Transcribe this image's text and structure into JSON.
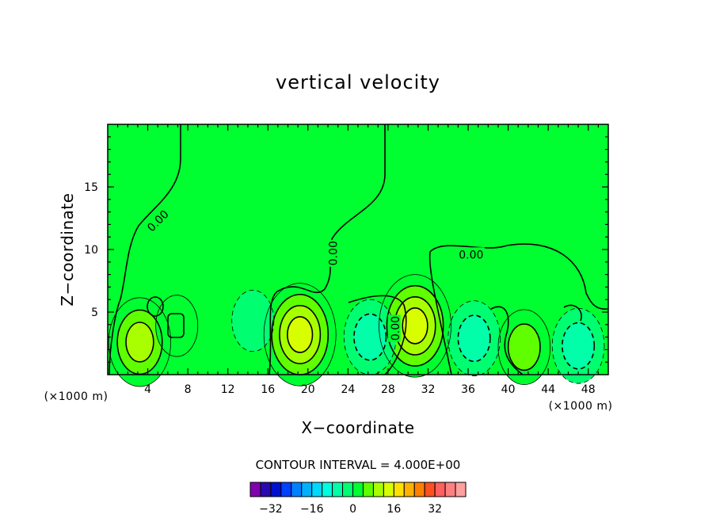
{
  "chart_data": {
    "type": "contour",
    "title": "vertical velocity",
    "xlabel": "X−coordinate",
    "ylabel": "Z−coordinate",
    "x_unit_left": "(×1000 m)",
    "x_unit_right": "(×1000 m)",
    "xlim": [
      0,
      50
    ],
    "ylim": [
      0,
      20
    ],
    "xticks": [
      4,
      8,
      12,
      16,
      20,
      24,
      28,
      32,
      36,
      40,
      44,
      48
    ],
    "yticks": [
      5,
      10,
      15
    ],
    "background_value": 0,
    "contour_interval_text": "CONTOUR INTERVAL = 4.000E+00",
    "contour_labels": [
      {
        "text": "0.00",
        "x": 5.0,
        "y": 12.3,
        "rotate": -45
      },
      {
        "text": "0.00",
        "x": 22.5,
        "y": 9.7,
        "rotate": -90
      },
      {
        "text": "0.00",
        "x": 28.7,
        "y": 3.7,
        "rotate": -90
      },
      {
        "text": "0.00",
        "x": 36.3,
        "y": 9.6,
        "rotate": 0
      }
    ],
    "features": [
      {
        "kind": "updraft",
        "cx": 3.2,
        "cy": 2.6,
        "peak": 10
      },
      {
        "kind": "updraft",
        "cx": 6.9,
        "cy": 3.9,
        "peak": 4
      },
      {
        "kind": "updraft",
        "cx": 19.2,
        "cy": 3.2,
        "peak": 14
      },
      {
        "kind": "updraft",
        "cx": 30.7,
        "cy": 3.9,
        "peak": 16
      },
      {
        "kind": "updraft",
        "cx": 41.6,
        "cy": 2.2,
        "peak": 8
      },
      {
        "kind": "downdraft",
        "cx": 14.5,
        "cy": 4.3,
        "peak": -4
      },
      {
        "kind": "downdraft",
        "cx": 26.2,
        "cy": 3.0,
        "peak": -8
      },
      {
        "kind": "downdraft",
        "cx": 36.6,
        "cy": 2.9,
        "peak": -8
      },
      {
        "kind": "downdraft",
        "cx": 47.0,
        "cy": 2.3,
        "peak": -8
      }
    ],
    "colorbar": {
      "colors": [
        "#8000b0",
        "#2a0ab0",
        "#0010d0",
        "#0040ff",
        "#0080ff",
        "#00b0ff",
        "#00d8ff",
        "#00ffe0",
        "#00ffa8",
        "#00ff70",
        "#00ff30",
        "#60ff00",
        "#a8ff00",
        "#d8ff00",
        "#ffe000",
        "#ffb000",
        "#ff8000",
        "#ff5020",
        "#ff6060",
        "#ff8080",
        "#ffa0a0"
      ],
      "tick_labels": [
        "−32",
        "−16",
        "0",
        "16",
        "32"
      ],
      "tick_values": [
        -32,
        -16,
        0,
        16,
        32
      ],
      "min": -40,
      "max": 44
    }
  }
}
